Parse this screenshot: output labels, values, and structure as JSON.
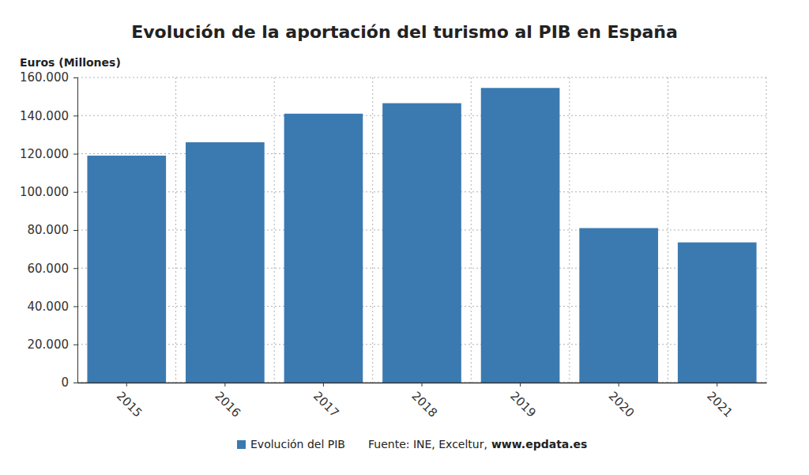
{
  "chart_data": {
    "type": "bar",
    "title": "Evolución de la aportación del turismo al PIB en España",
    "y_label": "Euros (Millones)",
    "categories": [
      "2015",
      "2016",
      "2017",
      "2018",
      "2019",
      "2020",
      "2021"
    ],
    "series": [
      {
        "name": "Evolución del PIB",
        "color": "#3a7ab1",
        "values": [
          119000,
          126000,
          141000,
          146500,
          154500,
          81000,
          73500
        ]
      }
    ],
    "ylim": [
      0,
      160000
    ],
    "yticks": [
      0,
      {
        "value": 20000,
        "label": "20.000"
      },
      {
        "value": 40000,
        "label": "40.000"
      },
      {
        "value": 60000,
        "label": "60.000"
      },
      {
        "value": 80000,
        "label": "80.000"
      },
      {
        "value": 100000,
        "label": "100.000"
      },
      {
        "value": 120000,
        "label": "120.000"
      },
      {
        "value": 140000,
        "label": "140.000"
      },
      {
        "value": 160000,
        "label": "160.000"
      }
    ],
    "grid": true,
    "legend": "bottom",
    "annotations": [
      "Fuente: INE, Exceltur,",
      "www.epdata.es"
    ]
  }
}
